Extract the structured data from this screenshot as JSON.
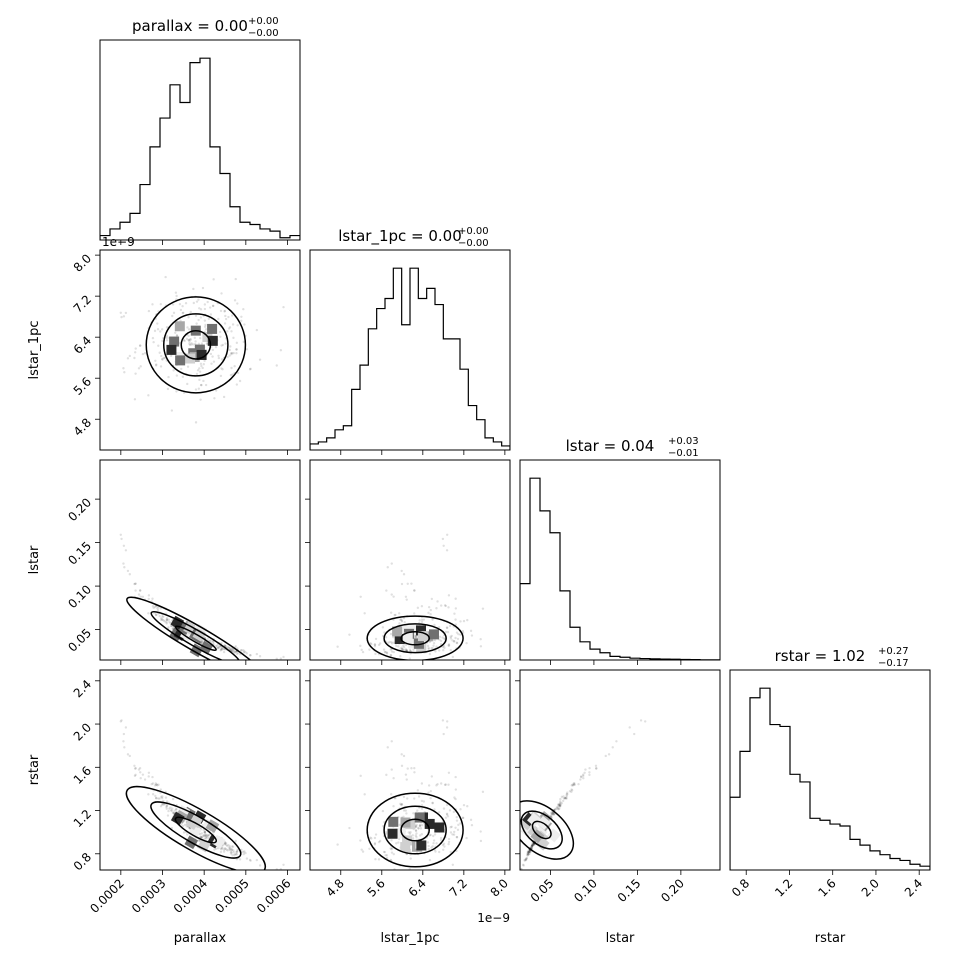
{
  "chart_data": {
    "type": "corner",
    "parameters": [
      {
        "key": "parallax",
        "label": "parallax",
        "title": "parallax = 0.00",
        "title_sup": "+0.00",
        "title_sub": "−0.00",
        "range": [
          0.00015,
          0.00063
        ],
        "ticks": [
          0.0002,
          0.0003,
          0.0004,
          0.0005,
          0.0006
        ],
        "tick_labels": [
          "0.0002",
          "0.0003",
          "0.0004",
          "0.0005",
          "0.0006"
        ],
        "median": 0.00038,
        "sigma": 7e-05
      },
      {
        "key": "lstar_1pc",
        "label": "lstar_1pc",
        "title": "lstar_1pc = 0.00",
        "title_sup": "+0.00",
        "title_sub": "−0.00",
        "range": [
          4.2,
          8.1
        ],
        "ticks": [
          4.8,
          5.6,
          6.4,
          7.2,
          8.0
        ],
        "tick_labels": [
          "4.8",
          "5.6",
          "6.4",
          "7.2",
          "8.0"
        ],
        "offset_label": "1e−9",
        "median": 6.25,
        "sigma": 0.55
      },
      {
        "key": "lstar",
        "label": "lstar",
        "title": "lstar = 0.04",
        "title_sup": "+0.03",
        "title_sub": "−0.01",
        "range": [
          0.015,
          0.245
        ],
        "ticks": [
          0.05,
          0.1,
          0.15,
          0.2
        ],
        "tick_labels": [
          "0.05",
          "0.10",
          "0.15",
          "0.20"
        ],
        "median": 0.04,
        "sigma": 0.015
      },
      {
        "key": "rstar",
        "label": "rstar",
        "title": "rstar = 1.02",
        "title_sup": "+0.27",
        "title_sub": "−0.17",
        "range": [
          0.65,
          2.5
        ],
        "ticks": [
          0.8,
          1.2,
          1.6,
          2.0,
          2.4
        ],
        "tick_labels": [
          "0.8",
          "1.2",
          "1.6",
          "2.0",
          "2.4"
        ],
        "median": 1.02,
        "sigma": 0.2
      }
    ],
    "histograms": [
      [
        2,
        5,
        8,
        12,
        25,
        42,
        55,
        70,
        62,
        80,
        82,
        42,
        30,
        15,
        8,
        7,
        5,
        4,
        1,
        2
      ],
      [
        3,
        4,
        6,
        10,
        12,
        30,
        42,
        60,
        70,
        75,
        90,
        62,
        90,
        75,
        80,
        72,
        55,
        55,
        40,
        22,
        15,
        6,
        4,
        2
      ],
      [
        42,
        100,
        82,
        70,
        38,
        18,
        10,
        6,
        4,
        2,
        1.5,
        1,
        0.8,
        0.6,
        0.5,
        0.4,
        0.3,
        0.2,
        0.1,
        0.1
      ],
      [
        38,
        62,
        90,
        95,
        76,
        75,
        50,
        46,
        27,
        26,
        24,
        23,
        16,
        13,
        10,
        8,
        6,
        5,
        3,
        2
      ]
    ]
  }
}
